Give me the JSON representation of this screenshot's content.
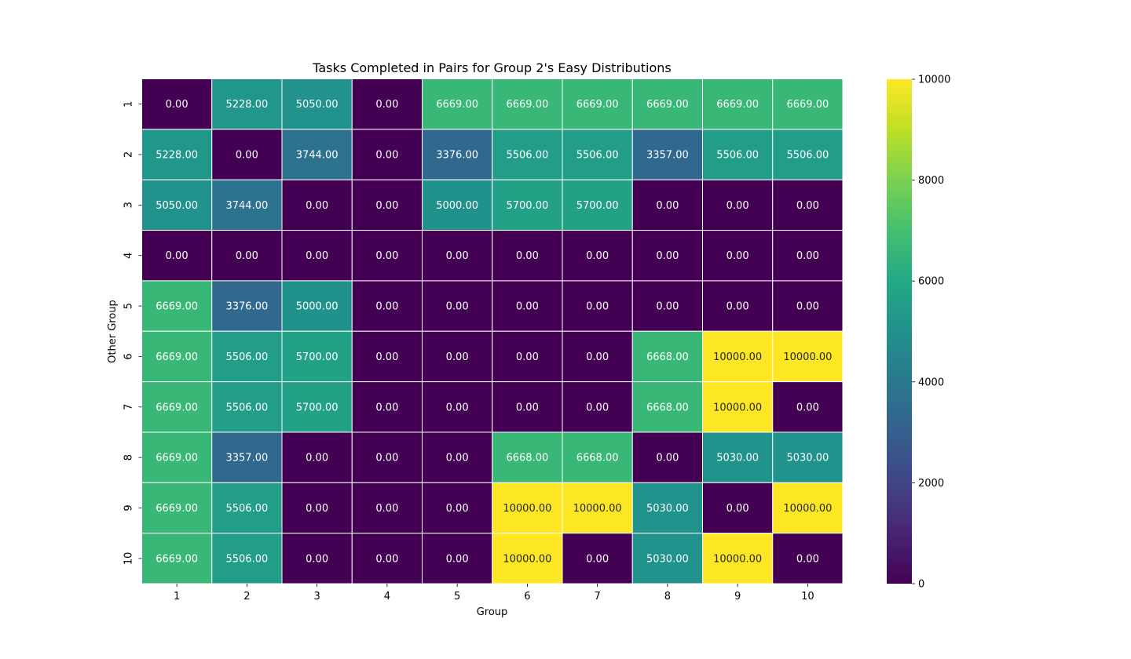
{
  "chart_data": {
    "type": "heatmap",
    "title": "Tasks Completed in Pairs for Group 2's Easy Distributions",
    "xlabel": "Group",
    "ylabel": "Other Group",
    "x_categories": [
      "1",
      "2",
      "3",
      "4",
      "5",
      "6",
      "7",
      "8",
      "9",
      "10"
    ],
    "y_categories": [
      "1",
      "2",
      "3",
      "4",
      "5",
      "6",
      "7",
      "8",
      "9",
      "10"
    ],
    "values": [
      [
        0,
        5228,
        5050,
        0,
        6669,
        6669,
        6669,
        6669,
        6669,
        6669
      ],
      [
        5228,
        0,
        3744,
        0,
        3376,
        5506,
        5506,
        3357,
        5506,
        5506
      ],
      [
        5050,
        3744,
        0,
        0,
        5000,
        5700,
        5700,
        0,
        0,
        0
      ],
      [
        0,
        0,
        0,
        0,
        0,
        0,
        0,
        0,
        0,
        0
      ],
      [
        6669,
        3376,
        5000,
        0,
        0,
        0,
        0,
        0,
        0,
        0
      ],
      [
        6669,
        5506,
        5700,
        0,
        0,
        0,
        0,
        6668,
        10000,
        10000
      ],
      [
        6669,
        5506,
        5700,
        0,
        0,
        0,
        0,
        6668,
        10000,
        0
      ],
      [
        6669,
        3357,
        0,
        0,
        0,
        6668,
        6668,
        0,
        5030,
        5030
      ],
      [
        6669,
        5506,
        0,
        0,
        0,
        10000,
        10000,
        5030,
        0,
        10000
      ],
      [
        6669,
        5506,
        0,
        0,
        0,
        10000,
        0,
        5030,
        10000,
        0
      ]
    ],
    "value_format_decimals": 2,
    "colormap": "viridis",
    "vmin": 0,
    "vmax": 10000,
    "colorbar_ticks": [
      0,
      2000,
      4000,
      6000,
      8000,
      10000
    ],
    "grid": true,
    "legend": "colorbar-right"
  }
}
